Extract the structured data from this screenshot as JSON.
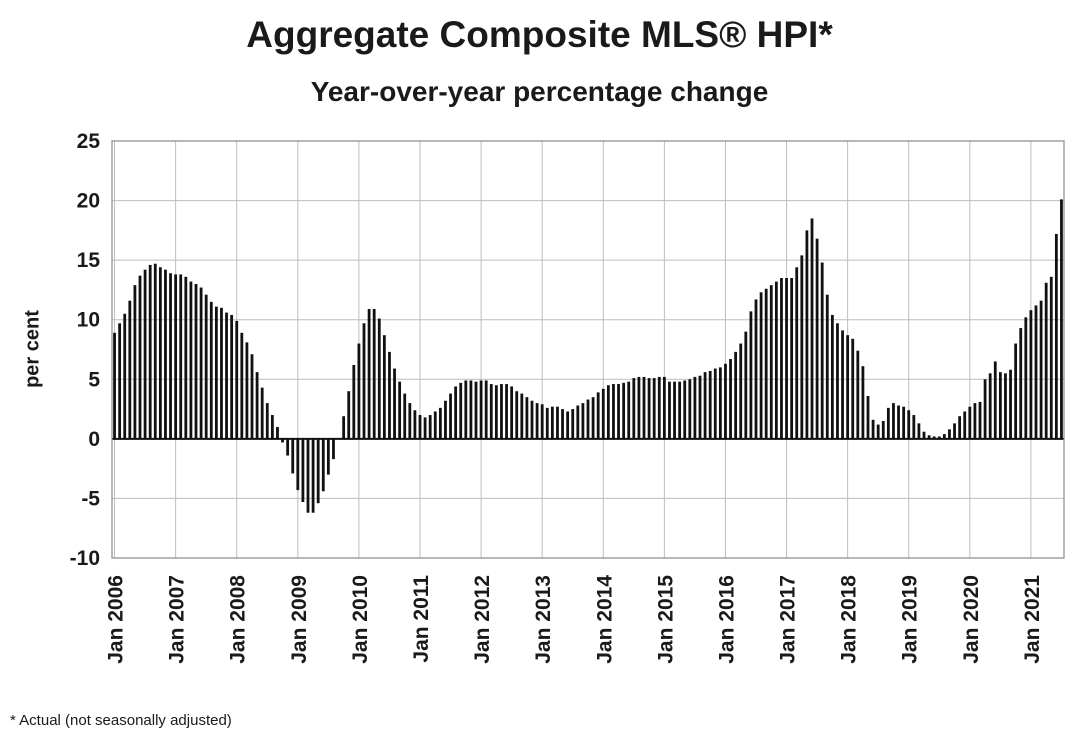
{
  "chart_data": {
    "type": "bar",
    "title": "Aggregate Composite MLS® HPI*",
    "subtitle": "Year-over-year percentage change",
    "ylabel": "per cent",
    "xlabel": "",
    "ylim": [
      -10,
      25
    ],
    "yticks": [
      25,
      20,
      15,
      10,
      5,
      0,
      -5,
      -10
    ],
    "grid": true,
    "x_tick_labels": [
      "Jan 2006",
      "Jan 2007",
      "Jan 2008",
      "Jan 2009",
      "Jan 2010",
      "Jan 2011",
      "Jan 2012",
      "Jan 2013",
      "Jan 2014",
      "Jan 2015",
      "Jan 2016",
      "Jan 2017",
      "Jan 2018",
      "Jan 2019",
      "Jan 2020",
      "Jan 2021"
    ],
    "start": "Jan 2006",
    "frequency": "monthly",
    "values": [
      8.9,
      9.7,
      10.5,
      11.6,
      12.9,
      13.7,
      14.2,
      14.6,
      14.7,
      14.4,
      14.2,
      13.9,
      13.8,
      13.8,
      13.6,
      13.2,
      13.0,
      12.7,
      12.1,
      11.5,
      11.1,
      11.0,
      10.6,
      10.4,
      9.9,
      8.9,
      8.1,
      7.1,
      5.6,
      4.3,
      3.0,
      2.0,
      1.0,
      -0.3,
      -1.4,
      -2.9,
      -4.3,
      -5.3,
      -6.2,
      -6.2,
      -5.4,
      -4.4,
      -3.0,
      -1.7,
      0.0,
      1.9,
      4.0,
      6.2,
      8.0,
      9.7,
      10.9,
      10.9,
      10.1,
      8.7,
      7.3,
      5.9,
      4.8,
      3.8,
      3.0,
      2.4,
      2.0,
      1.8,
      2.0,
      2.3,
      2.6,
      3.2,
      3.8,
      4.4,
      4.7,
      4.9,
      4.9,
      4.8,
      4.9,
      4.9,
      4.6,
      4.5,
      4.6,
      4.6,
      4.4,
      4.0,
      3.8,
      3.5,
      3.2,
      3.0,
      2.9,
      2.6,
      2.7,
      2.7,
      2.5,
      2.3,
      2.5,
      2.8,
      3.0,
      3.3,
      3.5,
      3.9,
      4.2,
      4.5,
      4.6,
      4.6,
      4.7,
      4.8,
      5.1,
      5.2,
      5.2,
      5.1,
      5.1,
      5.2,
      5.2,
      4.8,
      4.8,
      4.8,
      4.9,
      5.0,
      5.2,
      5.3,
      5.6,
      5.7,
      5.9,
      6.0,
      6.3,
      6.7,
      7.3,
      8.0,
      9.0,
      10.7,
      11.7,
      12.3,
      12.6,
      12.9,
      13.2,
      13.5,
      13.5,
      13.5,
      14.4,
      15.4,
      17.5,
      18.5,
      16.8,
      14.8,
      12.1,
      10.4,
      9.7,
      9.1,
      8.7,
      8.4,
      7.4,
      6.1,
      3.6,
      1.6,
      1.2,
      1.5,
      2.6,
      3.0,
      2.8,
      2.7,
      2.4,
      2.0,
      1.3,
      0.6,
      0.3,
      0.2,
      0.2,
      0.4,
      0.8,
      1.3,
      1.9,
      2.3,
      2.7,
      3.0,
      3.1,
      5.0,
      5.5,
      6.5,
      5.6,
      5.5,
      5.8,
      8.0,
      9.3,
      10.2,
      10.8,
      11.2,
      11.6,
      13.1,
      13.6,
      17.2,
      20.1
    ],
    "color": "#111111"
  },
  "footnote": "* Actual (not seasonally adjusted)"
}
